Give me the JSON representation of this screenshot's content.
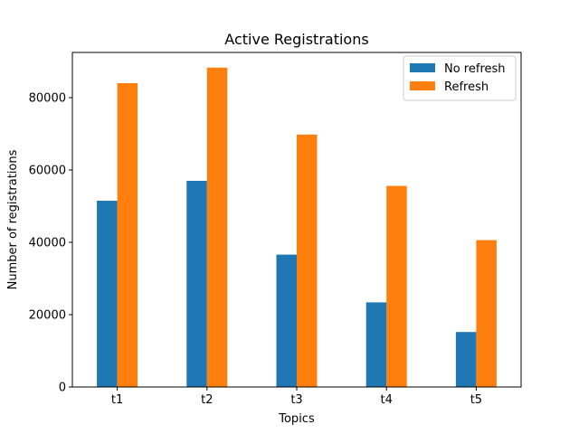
{
  "chart_data": {
    "type": "bar",
    "title": "Active Registrations",
    "xlabel": "Topics",
    "ylabel": "Number of registrations",
    "categories": [
      "t1",
      "t2",
      "t3",
      "t4",
      "t5"
    ],
    "series": [
      {
        "name": "No refresh",
        "color": "#1f77b4",
        "values": [
          51500,
          57000,
          36600,
          23400,
          15200
        ]
      },
      {
        "name": "Refresh",
        "color": "#ff7f0e",
        "values": [
          84000,
          88300,
          69800,
          55600,
          40600
        ]
      }
    ],
    "ylim": [
      0,
      92500
    ],
    "yticks": [
      0,
      20000,
      40000,
      60000,
      80000
    ],
    "grid": false,
    "legend_position": "top-right"
  }
}
